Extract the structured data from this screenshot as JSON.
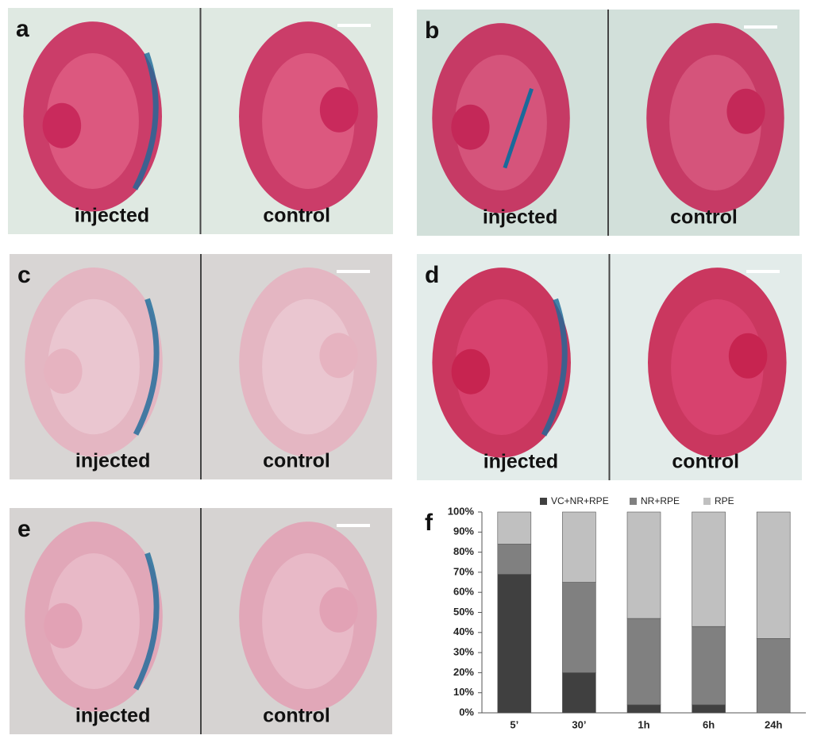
{
  "panels": [
    {
      "label": "a",
      "left": "injected",
      "right": "control"
    },
    {
      "label": "b",
      "left": "injected",
      "right": "control"
    },
    {
      "label": "c",
      "left": "injected",
      "right": "control"
    },
    {
      "label": "d",
      "left": "injected",
      "right": "control"
    },
    {
      "label": "e",
      "left": "injected",
      "right": "control"
    }
  ],
  "chart_data": {
    "type": "bar",
    "stacked": true,
    "label": "f",
    "categories": [
      "5’",
      "30’",
      "1h",
      "6h",
      "24h"
    ],
    "series": [
      {
        "name": "VC+NR+RPE",
        "color": "#404040",
        "values": [
          69,
          20,
          4,
          4,
          0
        ]
      },
      {
        "name": "NR+RPE",
        "color": "#808080",
        "values": [
          15,
          45,
          43,
          39,
          37
        ]
      },
      {
        "name": "RPE",
        "color": "#c0c0c0",
        "values": [
          16,
          35,
          53,
          57,
          63
        ]
      }
    ],
    "ylim": [
      0,
      100
    ],
    "yticks": [
      {
        "value": 0,
        "label": "0%"
      },
      {
        "value": 10,
        "label": "10%"
      },
      {
        "value": 20,
        "label": "20%"
      },
      {
        "value": 30,
        "label": "30%"
      },
      {
        "value": 40,
        "label": "40%"
      },
      {
        "value": 50,
        "label": "50%"
      },
      {
        "value": 60,
        "label": "60%"
      },
      {
        "value": 70,
        "label": "70%"
      },
      {
        "value": 80,
        "label": "80%"
      },
      {
        "value": 90,
        "label": "90%"
      },
      {
        "value": 100,
        "label": "100%"
      }
    ]
  }
}
